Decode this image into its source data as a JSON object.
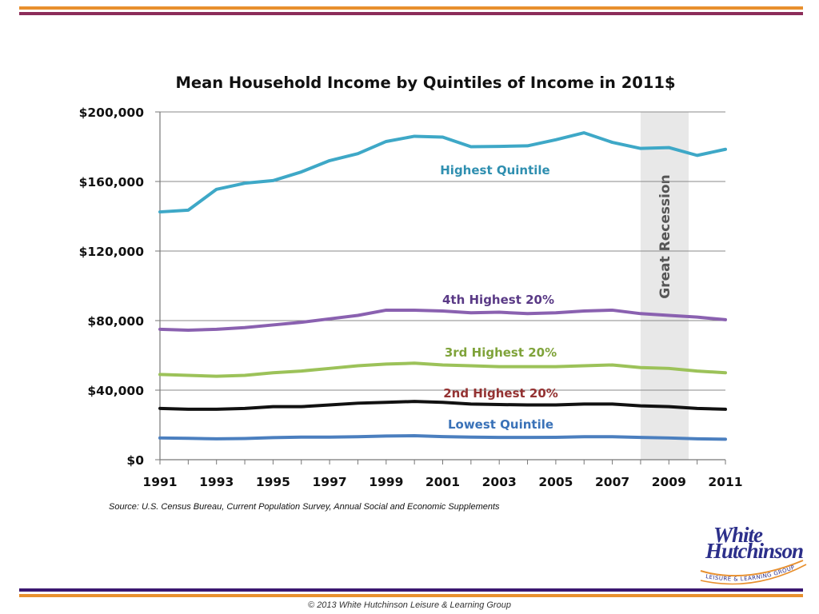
{
  "source": "Source: U.S. Census Bureau, Current Population Survey, Annual Social and Economic Supplements",
  "footer": "© 2013 White Hutchinson Leisure & Learning Group",
  "logo": {
    "line1": "White",
    "line2": "Hutchinson",
    "tagline": "LEISURE & LEARNING GROUP"
  },
  "colors": {
    "orange": "#e8902e",
    "purple": "#8c2d5a",
    "navy": "#3a1670",
    "logo": "#2c2f8a"
  },
  "chart_data": {
    "type": "line",
    "title": "Mean Household Income by Quintiles of Income in 2011$",
    "xlabel": "",
    "ylabel": "",
    "x": [
      1991,
      1992,
      1993,
      1994,
      1995,
      1996,
      1997,
      1998,
      1999,
      2000,
      2001,
      2002,
      2003,
      2004,
      2005,
      2006,
      2007,
      2008,
      2009,
      2010,
      2011
    ],
    "x_ticks": [
      "1991",
      "1993",
      "1995",
      "1997",
      "1999",
      "2001",
      "2003",
      "2005",
      "2007",
      "2009",
      "2011"
    ],
    "y_ticks": [
      "$0",
      "$40,000",
      "$80,000",
      "$120,000",
      "$160,000",
      "$200,000"
    ],
    "ylim": [
      0,
      200000
    ],
    "grid": true,
    "shaded_region": {
      "label": "Great Recession",
      "x_start": 2008,
      "x_end": 2009.7,
      "color": "#e8e8e8"
    },
    "series": [
      {
        "name": "Highest Quintile",
        "color": "#3ea8c7",
        "label_color": "#2f8fb0",
        "values": [
          142500,
          143500,
          155500,
          159000,
          160500,
          165500,
          172000,
          176000,
          183000,
          186000,
          185500,
          180000,
          180200,
          180500,
          184000,
          188000,
          182500,
          179000,
          179500,
          175000,
          178500
        ]
      },
      {
        "name": "4th Highest 20%",
        "color": "#8a61b0",
        "label_color": "#5a3a86",
        "values": [
          75000,
          74500,
          75000,
          76000,
          77500,
          79000,
          81000,
          83000,
          86000,
          86000,
          85500,
          84500,
          84800,
          84000,
          84500,
          85500,
          86000,
          84000,
          83000,
          82000,
          80500
        ]
      },
      {
        "name": "3rd Highest 20%",
        "color": "#9cc259",
        "label_color": "#7fa33a",
        "values": [
          49000,
          48500,
          48000,
          48500,
          50000,
          51000,
          52500,
          54000,
          55000,
          55500,
          54500,
          54000,
          53500,
          53500,
          53500,
          54000,
          54500,
          53000,
          52500,
          51000,
          50000
        ]
      },
      {
        "name": "2nd Highest 20%",
        "color": "#111111",
        "label_color": "#943232",
        "values": [
          29500,
          29000,
          29000,
          29500,
          30500,
          30500,
          31500,
          32500,
          33000,
          33500,
          33000,
          32000,
          31700,
          31500,
          31500,
          32000,
          32000,
          31000,
          30500,
          29500,
          29000
        ]
      },
      {
        "name": "Lowest Quintile",
        "color": "#4b7fbf",
        "label_color": "#3a72b8",
        "values": [
          12500,
          12300,
          12000,
          12200,
          12700,
          13000,
          13000,
          13200,
          13600,
          13800,
          13300,
          13000,
          12800,
          12800,
          12900,
          13200,
          13200,
          12800,
          12500,
          12000,
          11800
        ]
      }
    ]
  }
}
